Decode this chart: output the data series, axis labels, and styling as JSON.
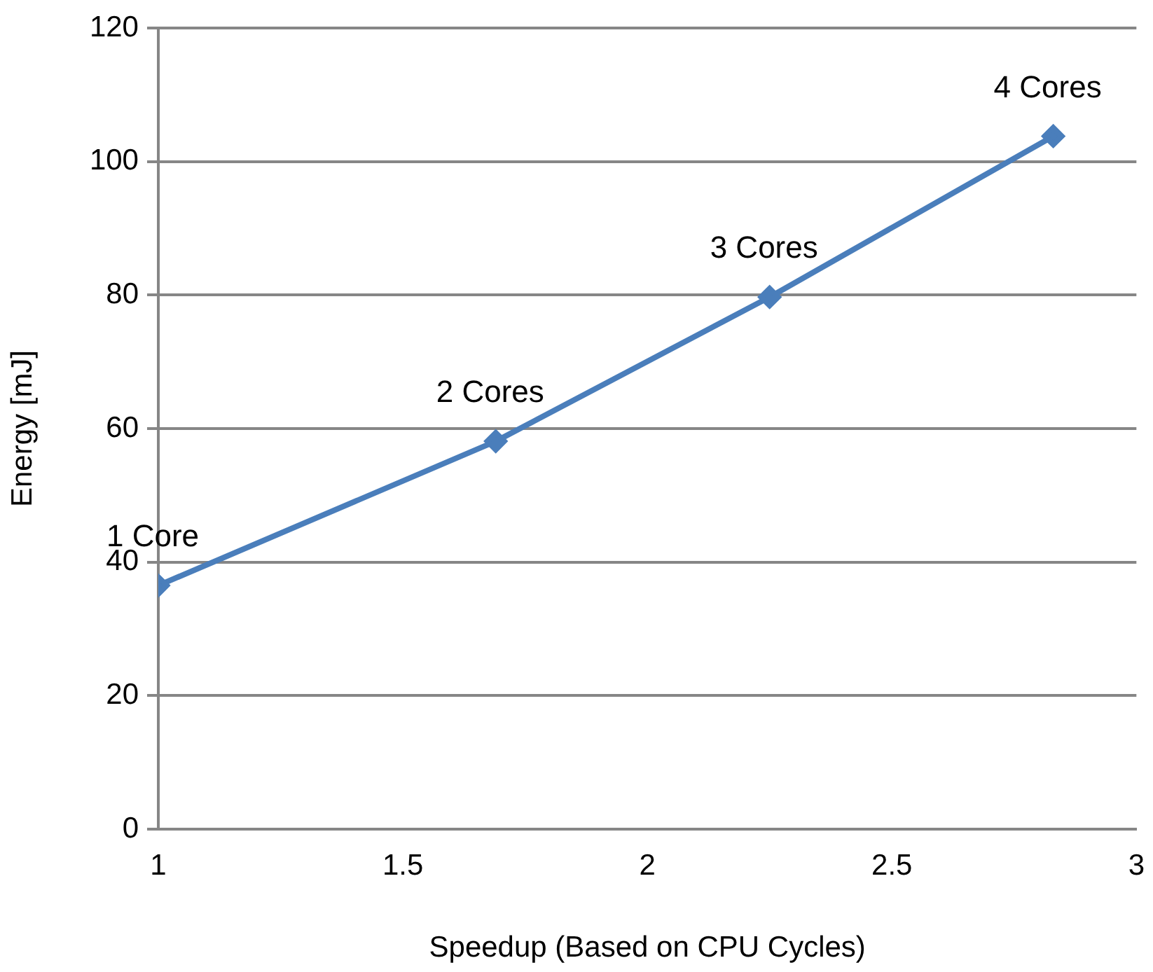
{
  "chart_data": {
    "type": "line",
    "xlabel": "Speedup (Based on CPU Cycles)",
    "ylabel": "Energy [mJ]",
    "x": [
      1,
      1.69,
      2.25,
      2.83
    ],
    "series": [
      {
        "color": "#4a7ebb",
        "values": [
          36.5,
          58.1,
          79.7,
          103.8
        ]
      }
    ],
    "xlim": [
      1,
      3
    ],
    "xticks": [
      1,
      1.5,
      2,
      2.5,
      3
    ],
    "ylim": [
      0,
      120
    ],
    "yticks": [
      0,
      20,
      40,
      60,
      80,
      100,
      120
    ],
    "grid": "y",
    "legend": false,
    "marker": "diamond",
    "line_style": "solid",
    "annotations": [
      {
        "text": "1 Core",
        "x": 1,
        "y": 36.5
      },
      {
        "text": "2 Cores",
        "x": 1.69,
        "y": 58.1
      },
      {
        "text": "3 Cores",
        "x": 2.25,
        "y": 79.7
      },
      {
        "text": "4 Cores",
        "x": 2.83,
        "y": 103.8
      }
    ]
  }
}
